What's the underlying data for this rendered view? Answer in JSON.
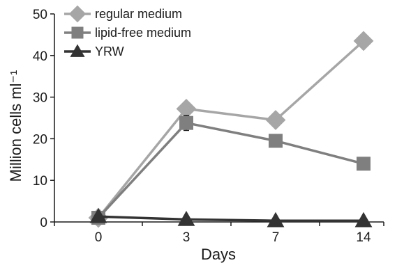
{
  "chart_data": {
    "type": "line",
    "title": "",
    "xlabel": "Days",
    "ylabel": "Million cells ml⁻¹",
    "categories": [
      "0",
      "3",
      "7",
      "14"
    ],
    "ylim": [
      0,
      50
    ],
    "yticks": [
      0,
      10,
      20,
      30,
      40,
      50
    ],
    "grid": false,
    "legend_position": "top-left",
    "series": [
      {
        "name": "regular medium",
        "values": [
          1,
          27.2,
          24.5,
          43.5
        ],
        "color": "#a6a6a6",
        "marker": "diamond"
      },
      {
        "name": "lipid-free medium",
        "values": [
          1,
          23.8,
          19.5,
          14
        ],
        "color": "#7f7f7f",
        "marker": "square",
        "error_bars": [
          0,
          1.8,
          0,
          0
        ]
      },
      {
        "name": "YRW",
        "values": [
          1.3,
          0.6,
          0.3,
          0.3
        ],
        "color": "#333333",
        "marker": "triangle"
      }
    ]
  }
}
